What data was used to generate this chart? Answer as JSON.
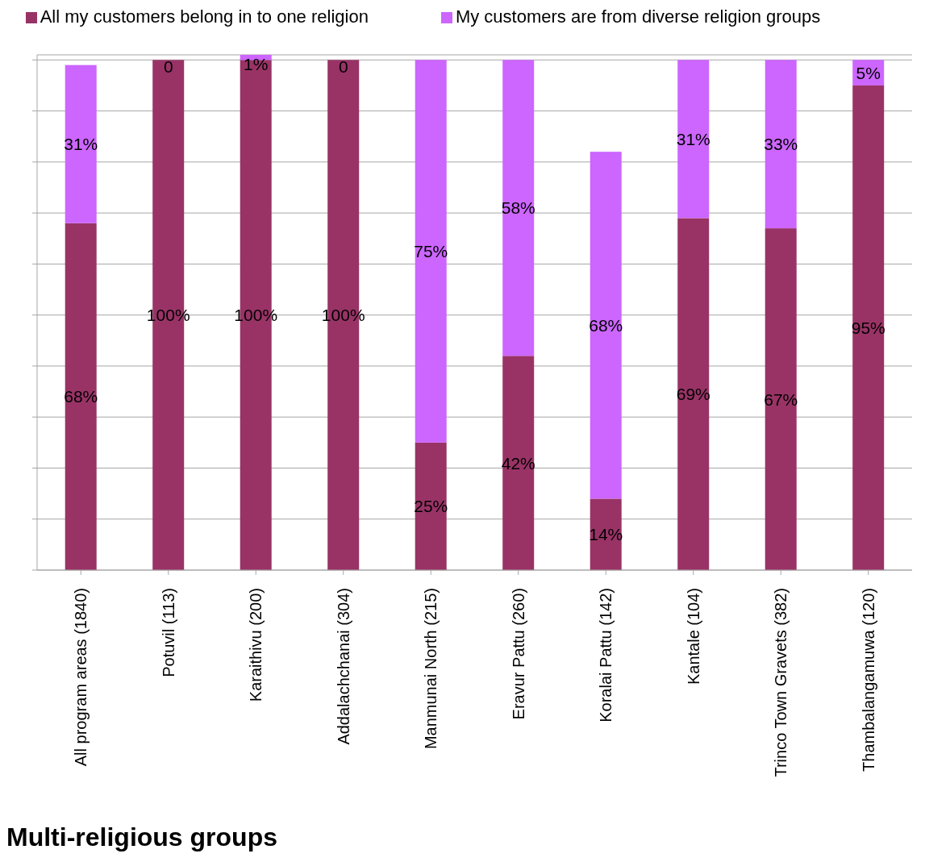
{
  "chart_data": {
    "type": "bar",
    "stacked": true,
    "title": "Multi-religious groups",
    "categories": [
      "All program areas (1840)",
      "Potuvil (113)",
      "Karaithivu (200)",
      "Addalachchanai (304)",
      "Manmunai North (215)",
      "Eravur Pattu (260)",
      "Koralai Pattu (142)",
      "Kantale (104)",
      "Trinco Town Gravets (382)",
      "Thambalangamuwa (120)"
    ],
    "series": [
      {
        "name": "All my customers belong in to one religion",
        "color": "#993366",
        "values": [
          68,
          100,
          100,
          100,
          25,
          42,
          14,
          69,
          67,
          95
        ],
        "value_labels": [
          "68%",
          "100%",
          "100%",
          "100%",
          "25%",
          "42%",
          "14%",
          "69%",
          "67%",
          "95%"
        ]
      },
      {
        "name": "My customers are from diverse religion groups",
        "color": "#cc66ff",
        "values": [
          31,
          0,
          1,
          0,
          75,
          58,
          68,
          31,
          33,
          5
        ],
        "value_labels": [
          "31%",
          "0",
          "1%",
          "0",
          "75%",
          "58%",
          "68%",
          "31%",
          "33%",
          "5%"
        ]
      }
    ],
    "ylim": [
      0,
      101
    ],
    "yticks": [
      {
        "value": 0,
        "label": null
      },
      {
        "value": 10,
        "label": null
      },
      {
        "value": 20,
        "label": null
      },
      {
        "value": 30,
        "label": null
      },
      {
        "value": 40,
        "label": null
      },
      {
        "value": 50,
        "label": null
      },
      {
        "value": 60,
        "label": null
      },
      {
        "value": 70,
        "label": null
      },
      {
        "value": 80,
        "label": null
      },
      {
        "value": 90,
        "label": null
      },
      {
        "value": 100,
        "label": null
      }
    ],
    "grid": "y",
    "legend": "top"
  }
}
